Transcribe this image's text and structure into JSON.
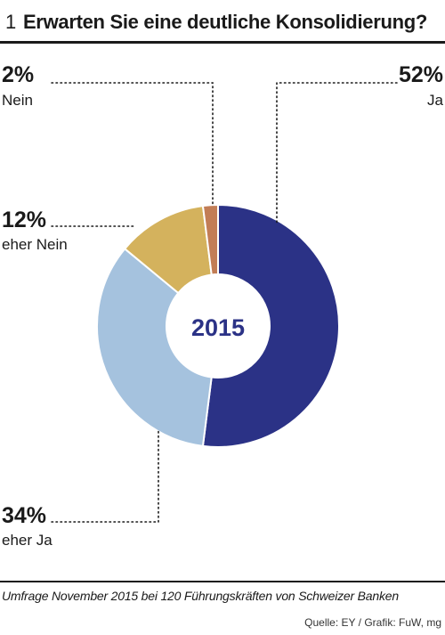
{
  "header": {
    "number": "1",
    "title": "Erwarten Sie eine deutliche Konsolidierung?"
  },
  "chart_data": {
    "type": "pie",
    "style": "donut",
    "center_label": "2015",
    "slices": [
      {
        "key": "ja",
        "label": "Ja",
        "pct_text": "52%",
        "value": 52,
        "color": "#2b3286"
      },
      {
        "key": "eher_ja",
        "label": "eher Ja",
        "pct_text": "34%",
        "value": 34,
        "color": "#a5c2de"
      },
      {
        "key": "eher_nein",
        "label": "eher Nein",
        "pct_text": "12%",
        "value": 12,
        "color": "#d4b25d"
      },
      {
        "key": "nein",
        "label": "Nein",
        "pct_text": "2%",
        "value": 2,
        "color": "#c27d56"
      }
    ]
  },
  "footnote": "Umfrage November 2015 bei 120 Führungskräften von Schweizer Banken",
  "source": "Quelle: EY / Grafik: FuW, mg"
}
